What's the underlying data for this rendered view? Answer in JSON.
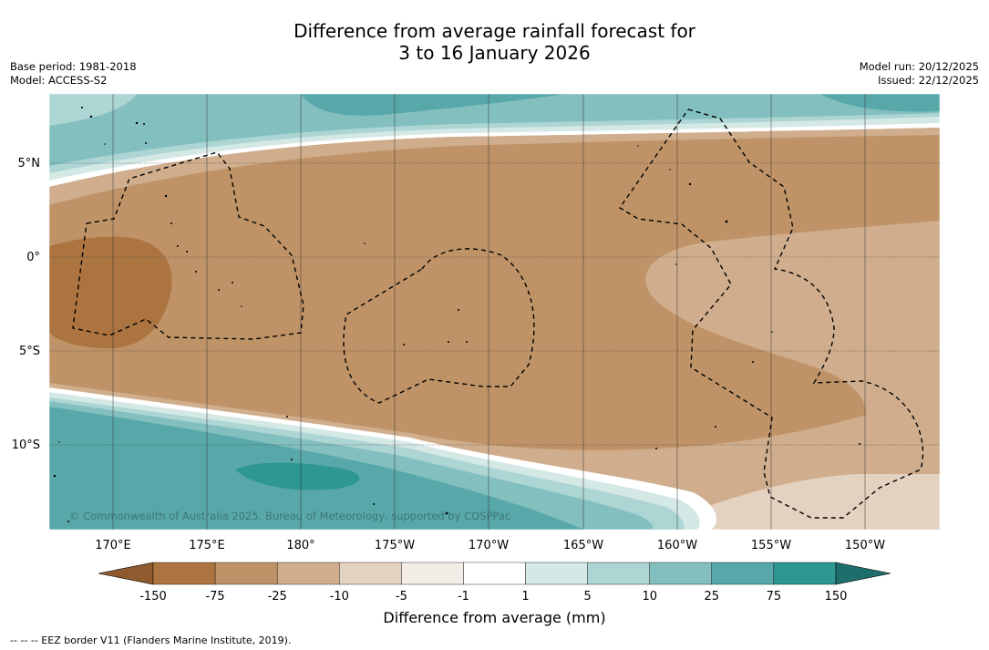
{
  "title": {
    "line1": "Difference from average rainfall forecast for",
    "line2": "3 to 16 January 2026"
  },
  "meta": {
    "base_period": "Base period: 1981-2018",
    "model": "Model: ACCESS-S2",
    "model_run": "Model run: 20/12/2025",
    "issued": "Issued: 22/12/2025"
  },
  "map": {
    "region": "Western-central Pacific",
    "lat_labels": [
      "5°N",
      "0°",
      "5°S",
      "10°S"
    ],
    "lon_labels": [
      "170°E",
      "175°E",
      "180°",
      "175°W",
      "170°W",
      "165°W",
      "160°W",
      "155°W",
      "150°W"
    ],
    "copyright": "© Commonwealth of Australia 2025, Bureau of Meteorology, supported by COSPPac",
    "overlays": [
      "EEZ border V11"
    ]
  },
  "legend": {
    "title": "Difference from average (mm)",
    "tick_labels": [
      "-150",
      "-75",
      "-25",
      "-10",
      "-5",
      "-1",
      "1",
      "5",
      "10",
      "25",
      "75",
      "150"
    ],
    "colors": [
      "#8f5a2e",
      "#ab7440",
      "#bf9367",
      "#d0ae8d",
      "#e4d2c0",
      "#f3ede7",
      "#ffffff",
      "#d4e8e6",
      "#acd5d4",
      "#83bfbf",
      "#58a8a9",
      "#2e9693",
      "#1e6e6d"
    ]
  },
  "footnote": "--  --  -- EEZ border V11 (Flanders Marine Institute, 2019)."
}
